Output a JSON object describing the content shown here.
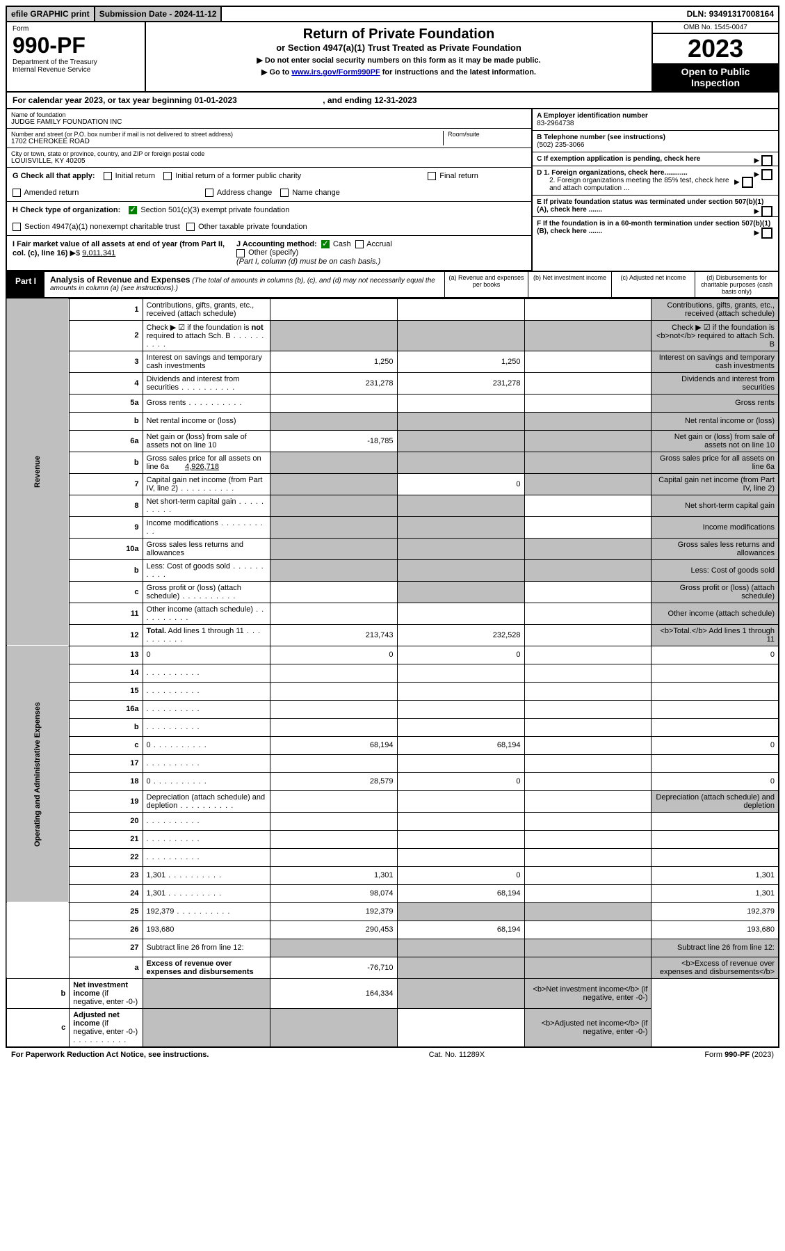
{
  "topbar": {
    "efile": "efile GRAPHIC print",
    "subdate_label": "Submission Date - ",
    "subdate": "2024-11-12",
    "dln_label": "DLN: ",
    "dln": "93491317008164"
  },
  "header": {
    "form_label": "Form",
    "form_num": "990-PF",
    "dept": "Department of the Treasury",
    "irs": "Internal Revenue Service",
    "title": "Return of Private Foundation",
    "subtitle": "or Section 4947(a)(1) Trust Treated as Private Foundation",
    "instr1": "▶ Do not enter social security numbers on this form as it may be made public.",
    "instr2_pre": "▶ Go to ",
    "instr2_link": "www.irs.gov/Form990PF",
    "instr2_post": " for instructions and the latest information.",
    "omb": "OMB No. 1545-0047",
    "year": "2023",
    "open_pub": "Open to Public Inspection"
  },
  "calyear": {
    "pre": "For calendar year 2023, or tax year beginning ",
    "begin": "01-01-2023",
    "mid": " , and ending ",
    "end": "12-31-2023"
  },
  "org": {
    "name_label": "Name of foundation",
    "name": "JUDGE FAMILY FOUNDATION INC",
    "addr_label": "Number and street (or P.O. box number if mail is not delivered to street address)",
    "addr": "1702 CHEROKEE ROAD",
    "room_label": "Room/suite",
    "city_label": "City or town, state or province, country, and ZIP or foreign postal code",
    "city": "LOUISVILLE, KY  40205",
    "ein_label": "A Employer identification number",
    "ein": "83-2964738",
    "phone_label": "B Telephone number (see instructions)",
    "phone": "(502) 235-3066",
    "c_label": "C If exemption application is pending, check here",
    "d1": "D 1. Foreign organizations, check here............",
    "d2": "2. Foreign organizations meeting the 85% test, check here and attach computation ...",
    "e": "E  If private foundation status was terminated under section 507(b)(1)(A), check here .......",
    "f": "F  If the foundation is in a 60-month termination under section 507(b)(1)(B), check here .......",
    "g_label": "G Check all that apply:",
    "g_opts": [
      "Initial return",
      "Initial return of a former public charity",
      "Final return",
      "Amended return",
      "Address change",
      "Name change"
    ],
    "h_label": "H Check type of organization:",
    "h1": "Section 501(c)(3) exempt private foundation",
    "h2": "Section 4947(a)(1) nonexempt charitable trust",
    "h3": "Other taxable private foundation",
    "i_label": "I Fair market value of all assets at end of year (from Part II, col. (c), line 16)",
    "i_val": "9,011,341",
    "j_label": "J Accounting method:",
    "j_cash": "Cash",
    "j_accrual": "Accrual",
    "j_other": "Other (specify)",
    "j_note": "(Part I, column (d) must be on cash basis.)"
  },
  "part1": {
    "tab": "Part I",
    "title": "Analysis of Revenue and Expenses",
    "note": " (The total of amounts in columns (b), (c), and (d) may not necessarily equal the amounts in column (a) (see instructions).)",
    "col_a": "(a)   Revenue and expenses per books",
    "col_b": "(b)   Net investment income",
    "col_c": "(c)   Adjusted net income",
    "col_d": "(d)   Disbursements for charitable purposes (cash basis only)"
  },
  "sections": {
    "revenue": "Revenue",
    "expenses": "Operating and Administrative Expenses"
  },
  "lines": [
    {
      "n": "1",
      "d": "Contributions, gifts, grants, etc., received (attach schedule)",
      "a": "",
      "b": "",
      "c_shade": false,
      "d_shade": true
    },
    {
      "n": "2",
      "d": "Check ▶ ☑ if the foundation is <b>not</b> required to attach Sch. B",
      "dots": true,
      "no_cols": true
    },
    {
      "n": "3",
      "d": "Interest on savings and temporary cash investments",
      "a": "1,250",
      "b": "1,250",
      "c": "",
      "d_shade": true
    },
    {
      "n": "4",
      "d": "Dividends and interest from securities",
      "dots": true,
      "a": "231,278",
      "b": "231,278",
      "c": "",
      "d_shade": true
    },
    {
      "n": "5a",
      "d": "Gross rents",
      "dots": true,
      "a": "",
      "b": "",
      "c": "",
      "d_shade": true
    },
    {
      "n": "b",
      "d": "Net rental income or (loss)",
      "mini": true,
      "all_shade": true
    },
    {
      "n": "6a",
      "d": "Net gain or (loss) from sale of assets not on line 10",
      "a": "-18,785",
      "b_shade": true,
      "c_shade": true,
      "d_shade": true
    },
    {
      "n": "b",
      "d": "Gross sales price for all assets on line 6a",
      "mini": true,
      "mini_val": "4,926,718",
      "all_shade": true
    },
    {
      "n": "7",
      "d": "Capital gain net income (from Part IV, line 2)",
      "dots": true,
      "a_shade": true,
      "b": "0",
      "c_shade": true,
      "d_shade": true
    },
    {
      "n": "8",
      "d": "Net short-term capital gain",
      "dots": true,
      "a_shade": true,
      "b_shade": true,
      "c": "",
      "d_shade": true
    },
    {
      "n": "9",
      "d": "Income modifications",
      "dots": true,
      "a_shade": true,
      "b_shade": true,
      "c": "",
      "d_shade": true
    },
    {
      "n": "10a",
      "d": "Gross sales less returns and allowances",
      "mini": true,
      "all_shade": true
    },
    {
      "n": "b",
      "d": "Less: Cost of goods sold",
      "dots": true,
      "mini": true,
      "all_shade": true
    },
    {
      "n": "c",
      "d": "Gross profit or (loss) (attach schedule)",
      "dots": true,
      "a": "",
      "b_shade": true,
      "c": "",
      "d_shade": true
    },
    {
      "n": "11",
      "d": "Other income (attach schedule)",
      "dots": true,
      "a": "",
      "b": "",
      "c": "",
      "d_shade": true
    },
    {
      "n": "12",
      "d": "<b>Total.</b> Add lines 1 through 11",
      "dots": true,
      "a": "213,743",
      "b": "232,528",
      "c": "",
      "d_shade": true
    },
    {
      "n": "13",
      "d": "0",
      "a": "0",
      "b": "0",
      "c": "",
      "sec": "exp"
    },
    {
      "n": "14",
      "d": "",
      "dots": true,
      "a": "",
      "b": "",
      "c": ""
    },
    {
      "n": "15",
      "d": "",
      "dots": true,
      "a": "",
      "b": "",
      "c": ""
    },
    {
      "n": "16a",
      "d": "",
      "dots": true,
      "a": "",
      "b": "",
      "c": ""
    },
    {
      "n": "b",
      "d": "",
      "dots": true,
      "a": "",
      "b": "",
      "c": ""
    },
    {
      "n": "c",
      "d": "0",
      "dots": true,
      "a": "68,194",
      "b": "68,194",
      "c": ""
    },
    {
      "n": "17",
      "d": "",
      "dots": true,
      "a": "",
      "b": "",
      "c": ""
    },
    {
      "n": "18",
      "d": "0",
      "dots": true,
      "a": "28,579",
      "b": "0",
      "c": ""
    },
    {
      "n": "19",
      "d": "Depreciation (attach schedule) and depletion",
      "dots": true,
      "a": "",
      "b": "",
      "c": "",
      "d_shade": true
    },
    {
      "n": "20",
      "d": "",
      "dots": true,
      "a": "",
      "b": "",
      "c": ""
    },
    {
      "n": "21",
      "d": "",
      "dots": true,
      "a": "",
      "b": "",
      "c": ""
    },
    {
      "n": "22",
      "d": "",
      "dots": true,
      "a": "",
      "b": "",
      "c": ""
    },
    {
      "n": "23",
      "d": "1,301",
      "dots": true,
      "a": "1,301",
      "b": "0",
      "c": ""
    },
    {
      "n": "24",
      "d": "1,301",
      "dots": true,
      "a": "98,074",
      "b": "68,194",
      "c": ""
    },
    {
      "n": "25",
      "d": "192,379",
      "dots": true,
      "a": "192,379",
      "b_shade": true,
      "c_shade": true
    },
    {
      "n": "26",
      "d": "193,680",
      "a": "290,453",
      "b": "68,194",
      "c": ""
    },
    {
      "n": "27",
      "d": "Subtract line 26 from line 12:",
      "a_shade": true,
      "b_shade": true,
      "c_shade": true,
      "d_shade": true,
      "sec": "none"
    },
    {
      "n": "a",
      "d": "<b>Excess of revenue over expenses and disbursements</b>",
      "a": "-76,710",
      "b_shade": true,
      "c_shade": true,
      "d_shade": true
    },
    {
      "n": "b",
      "d": "<b>Net investment income</b> (if negative, enter -0-)",
      "a_shade": true,
      "b": "164,334",
      "c_shade": true,
      "d_shade": true
    },
    {
      "n": "c",
      "d": "<b>Adjusted net income</b> (if negative, enter -0-)",
      "dots": true,
      "a_shade": true,
      "b_shade": true,
      "c": "",
      "d_shade": true
    }
  ],
  "footer": {
    "left": "For Paperwork Reduction Act Notice, see instructions.",
    "mid": "Cat. No. 11289X",
    "right": "Form 990-PF (2023)"
  },
  "colors": {
    "shade": "#bfbfbf",
    "link": "#0000cc",
    "check": "#008000"
  }
}
